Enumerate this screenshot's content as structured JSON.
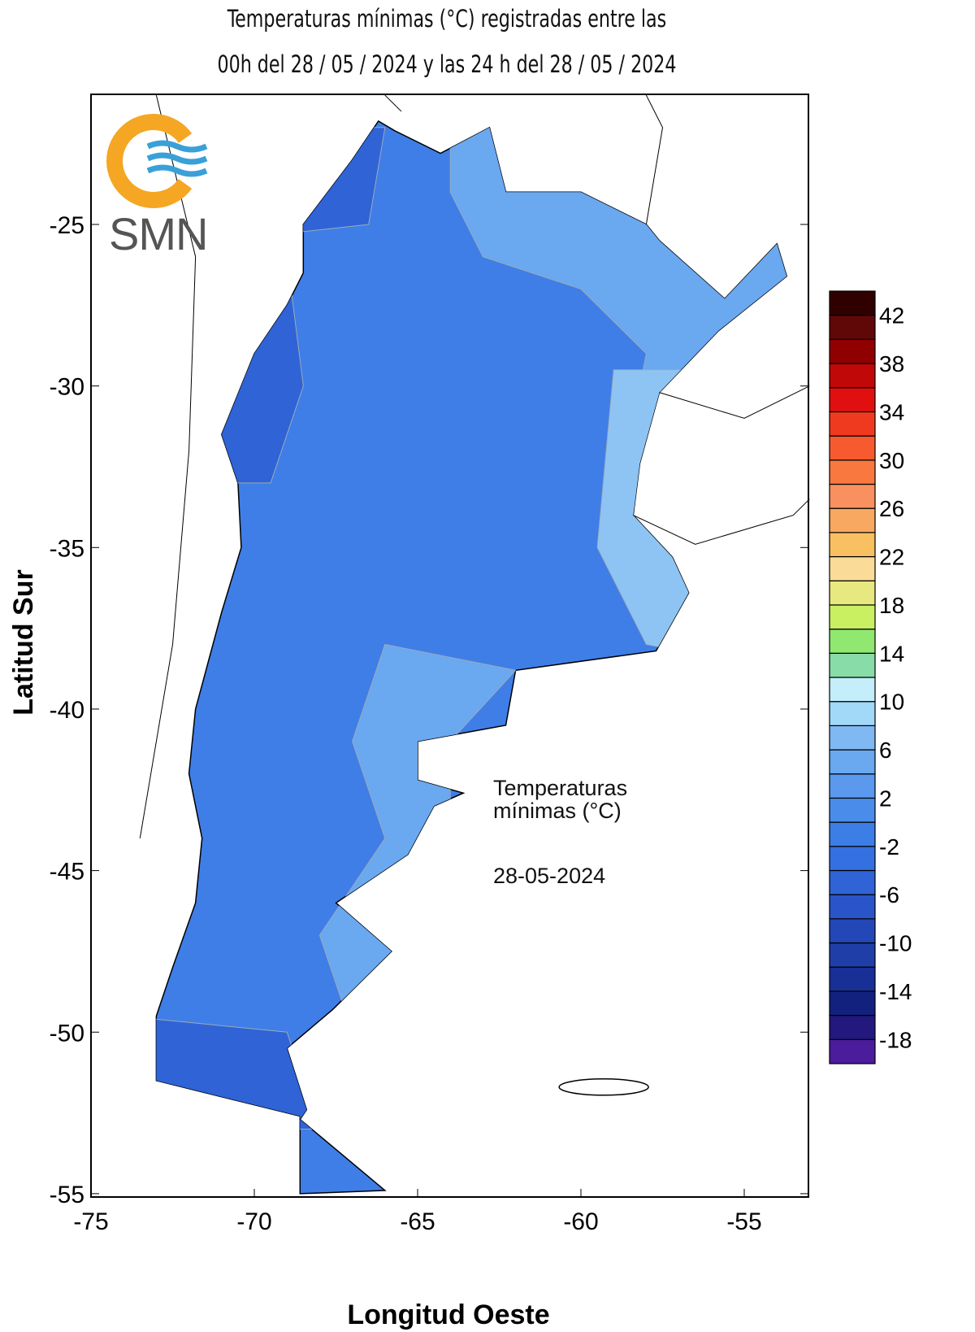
{
  "title_line1": "Temperaturas mínimas (°C) registradas entre las",
  "title_line2": "00h del 28 / 05 / 2024 y las 24 h del 28 / 05 / 2024",
  "logo_text": "SMN",
  "y_axis_label": "Latitud Sur",
  "x_axis_label": "Longitud Oeste",
  "x_ticks": [
    "-75",
    "-70",
    "-65",
    "-60",
    "-55"
  ],
  "y_ticks": [
    "-25",
    "-30",
    "-35",
    "-40",
    "-45",
    "-50",
    "-55"
  ],
  "legend_note": {
    "line1": "Temperaturas",
    "line2": "mínimas (°C)",
    "date": "28-05-2024"
  },
  "colorbar": {
    "labels": [
      "42",
      "38",
      "34",
      "30",
      "26",
      "22",
      "18",
      "14",
      "10",
      "6",
      "2",
      "-2",
      "-6",
      "-10",
      "-14",
      "-18"
    ],
    "bins_min": -20,
    "bins_max": 44,
    "bin_step": 2,
    "colors_bottom_to_top": [
      "#4b1c9c",
      "#22187e",
      "#13217e",
      "#182f96",
      "#1f3ea8",
      "#2447b8",
      "#2a55c8",
      "#2f63d6",
      "#3470e0",
      "#3d7ee6",
      "#4a8cea",
      "#5a99ee",
      "#6aa8f0",
      "#80b8f2",
      "#a2d8f8",
      "#c4eefa",
      "#88dca8",
      "#90e870",
      "#c8f060",
      "#e8e880",
      "#fadc98",
      "#f8c060",
      "#f8a860",
      "#f89060",
      "#f87840",
      "#f85a30",
      "#f03a20",
      "#e01010",
      "#c00808",
      "#900000",
      "#600808",
      "#300000"
    ]
  },
  "map_colors": {
    "dominant": "#3f7ee6",
    "dark": "#2f63d6",
    "light": "#6aa8f0",
    "lighter": "#8ec4f4"
  },
  "extent": {
    "lon": [
      -75,
      -53
    ],
    "lat": [
      -55,
      -21
    ]
  }
}
